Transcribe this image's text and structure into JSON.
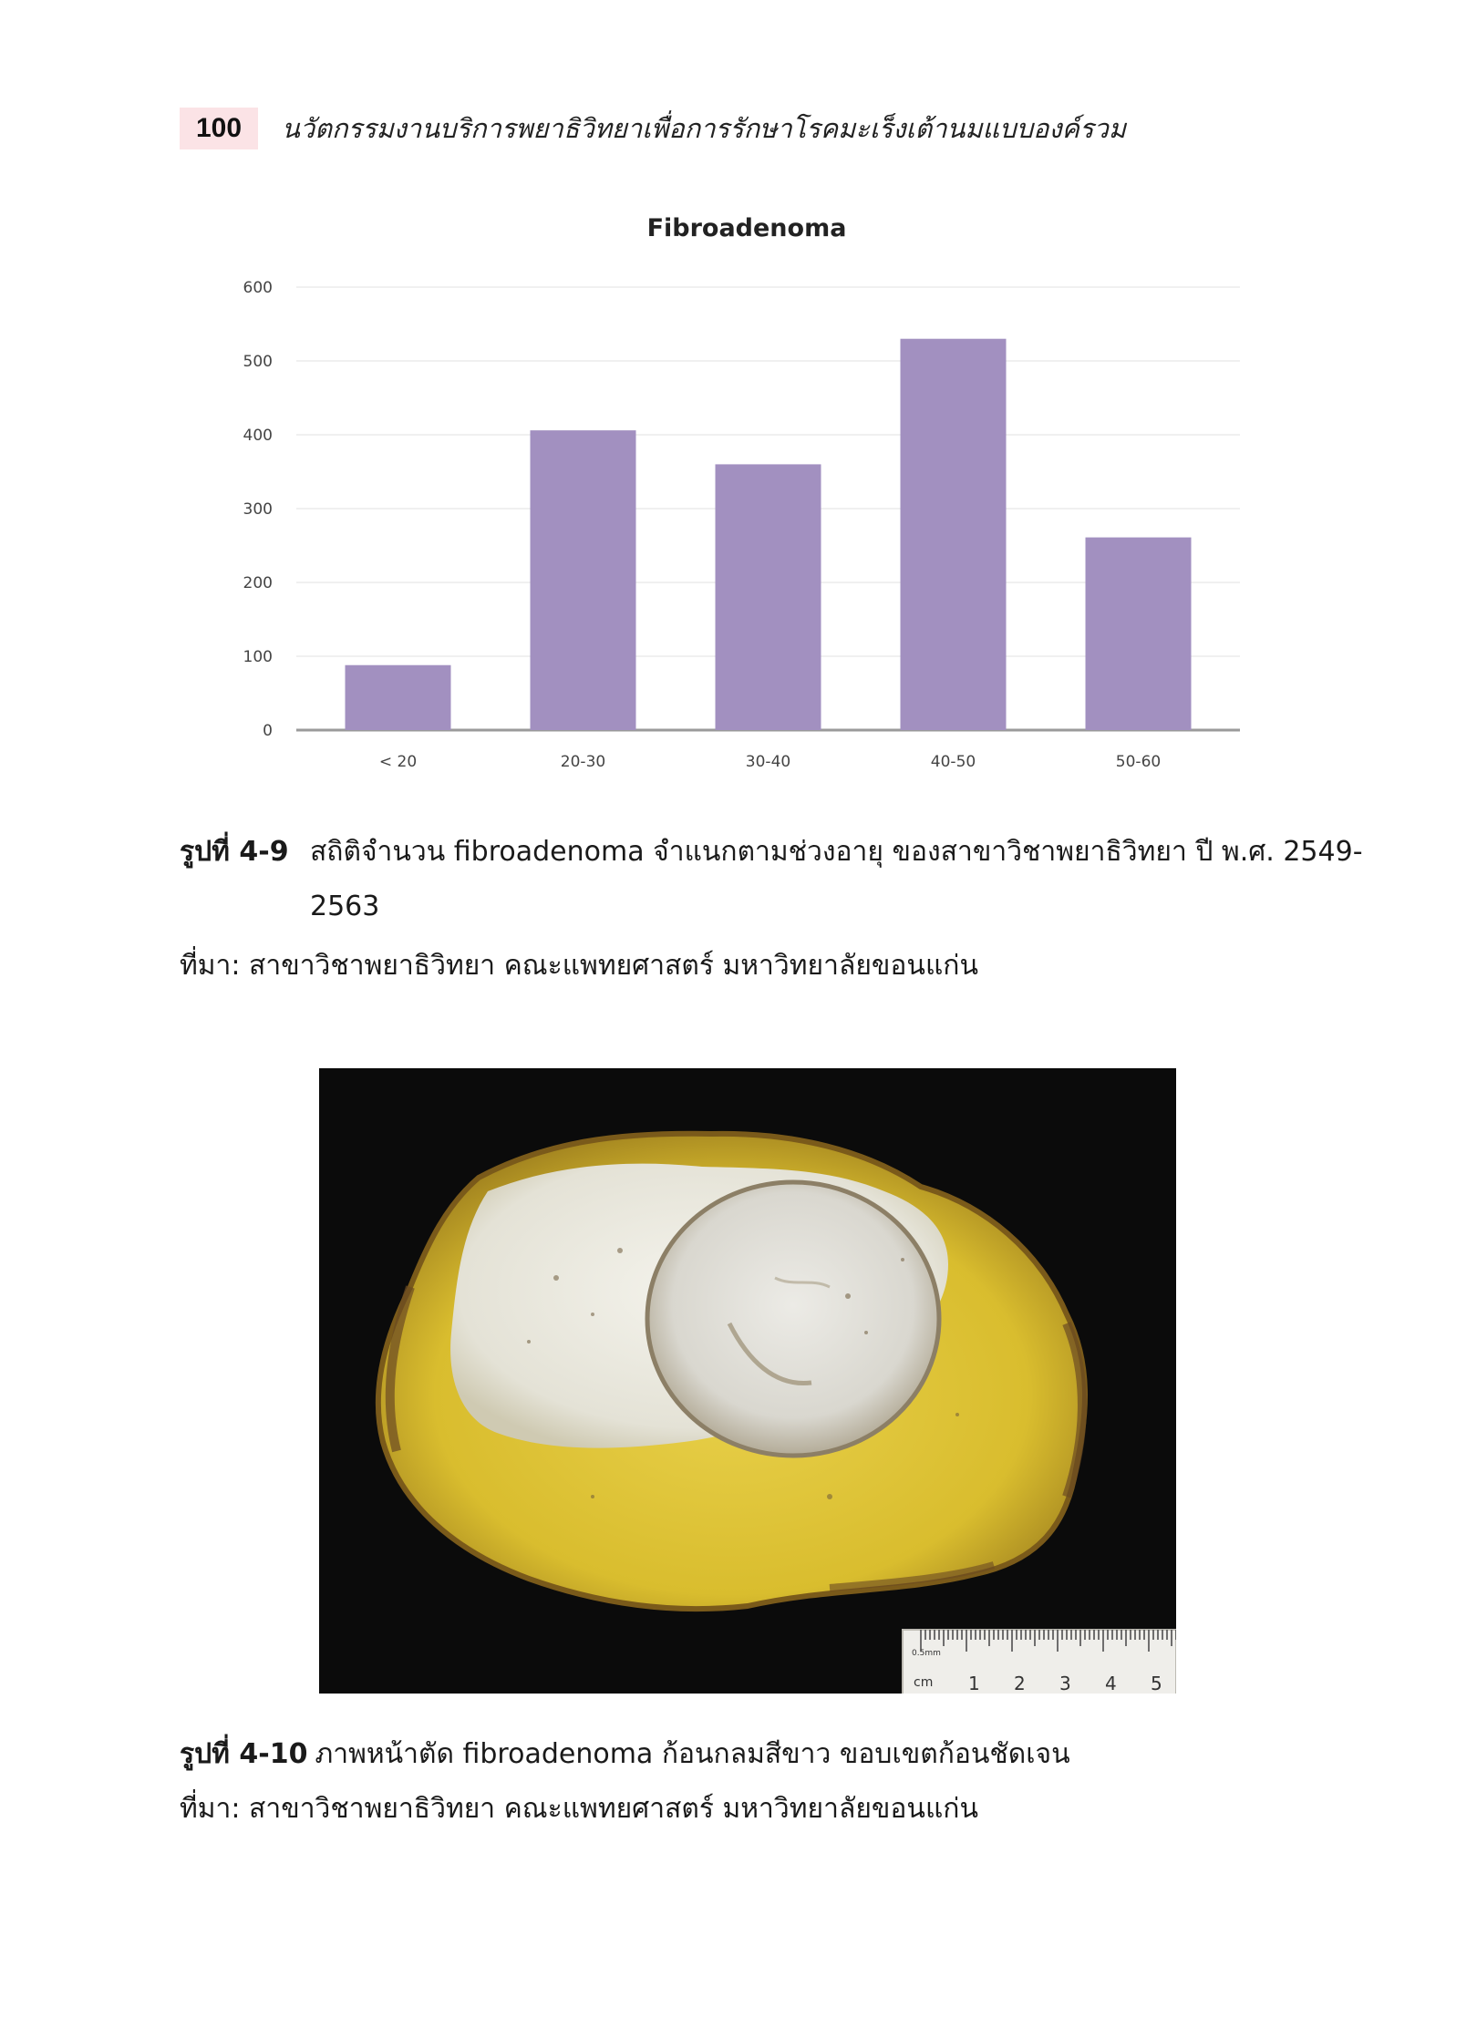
{
  "header": {
    "page_number": "100",
    "running_title": "นวัตกรรมงานบริการพยาธิวิทยาเพื่อการรักษาโรคมะเร็งเต้านมแบบองค์รวม"
  },
  "chart_data": {
    "type": "bar",
    "title": "Fibroadenoma",
    "categories": [
      "< 20",
      "20-30",
      "30-40",
      "40-50",
      "50-60"
    ],
    "values": [
      88,
      406,
      360,
      530,
      261
    ],
    "yticks": [
      0,
      100,
      200,
      300,
      400,
      500,
      600
    ],
    "ylim": [
      0,
      600
    ],
    "xlabel": "",
    "ylabel": "",
    "grid": true,
    "bar_color": "#a290c0"
  },
  "figure1": {
    "label": "รูปที่ 4-9",
    "caption_line1": "สถิติจำนวน fibroadenoma จำแนกตามช่วงอายุ ของสาขาวิชาพยาธิวิทยา ปี พ.ศ. 2549-",
    "caption_line2": "2563",
    "source": "ที่มา: สาขาวิชาพยาธิวิทยา คณะแพทยศาสตร์ มหาวิทยาลัยขอนแก่น"
  },
  "figure2": {
    "label": "รูปที่ 4-10",
    "caption": "ภาพหน้าตัด fibroadenoma ก้อนกลมสีขาว ขอบเขตก้อนชัดเจน",
    "source": "ที่มา: สาขาวิชาพยาธิวิทยา คณะแพทยศาสตร์ มหาวิทยาลัยขอนแก่น",
    "ruler": {
      "unit_label": "cm",
      "mm_label": "0.5mm",
      "numbers": [
        "1",
        "2",
        "3",
        "4",
        "5"
      ]
    }
  }
}
